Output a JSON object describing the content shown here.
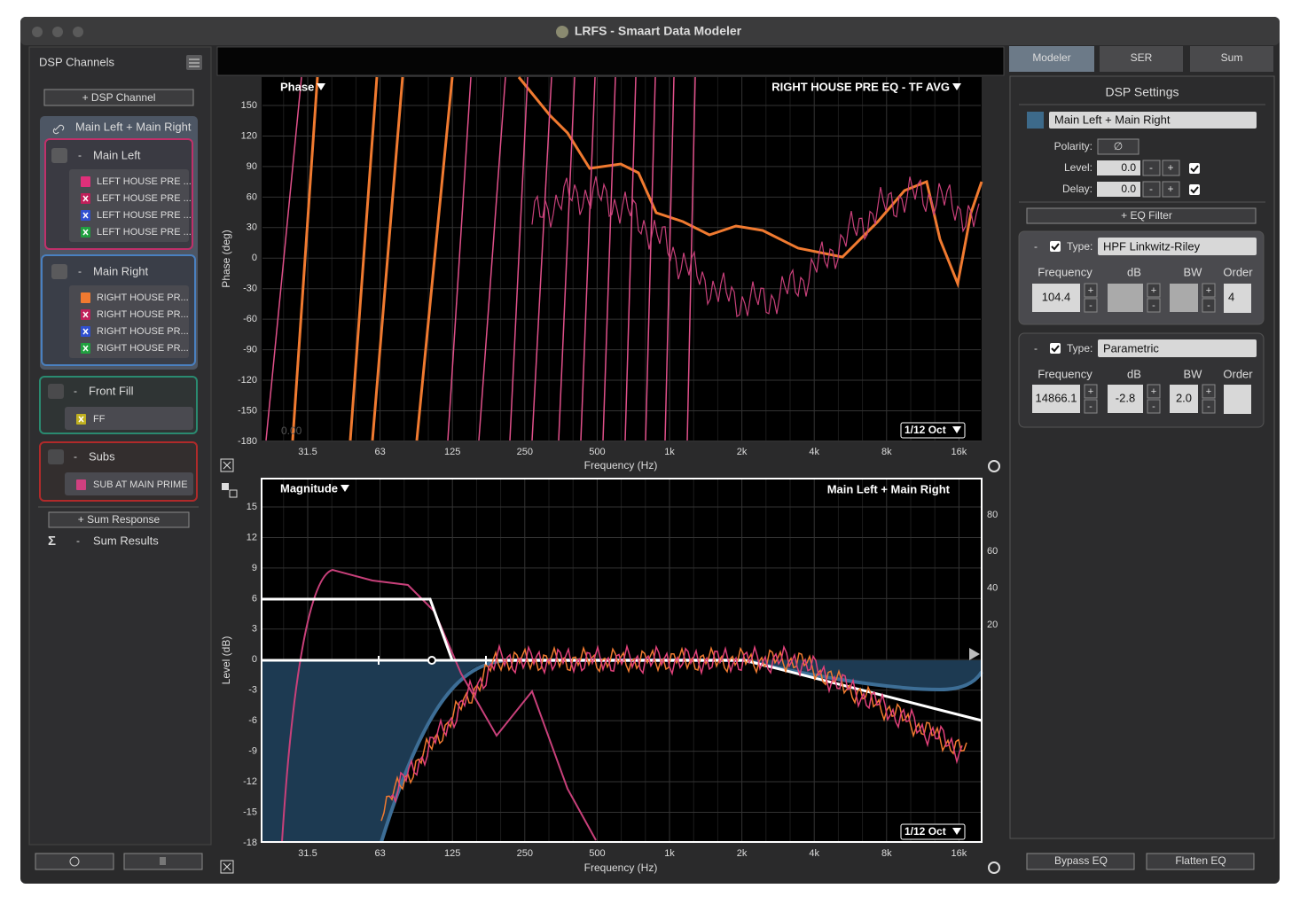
{
  "window": {
    "title": "LRFS - Smaart Data Modeler"
  },
  "sidebar": {
    "title": "DSP Channels",
    "add_channel": "+ DSP Channel",
    "group_name": "Main Left + Main Right",
    "dash": "-",
    "channels": [
      {
        "name": "Main Left",
        "sources": [
          "LEFT HOUSE PRE ...",
          "LEFT HOUSE PRE ...",
          "LEFT HOUSE PRE ...",
          "LEFT HOUSE PRE ..."
        ]
      },
      {
        "name": "Main Right",
        "sources": [
          "RIGHT HOUSE PR...",
          "RIGHT HOUSE PR...",
          "RIGHT HOUSE PR...",
          "RIGHT HOUSE PR..."
        ]
      },
      {
        "name": "Front Fill",
        "sources": [
          "FF"
        ]
      },
      {
        "name": "Subs",
        "sources": [
          "SUB AT MAIN PRIME"
        ]
      }
    ],
    "add_sum": "+ Sum Response",
    "sigma": "Σ",
    "sum_results": "Sum Results"
  },
  "phase_plot": {
    "title": "Phase",
    "trace": "RIGHT HOUSE PRE EQ - TF AVG",
    "resolution": "1/12 Oct",
    "overlay": "0.00",
    "y_label": "Phase (deg)",
    "x_label": "Frequency (Hz)",
    "yticks": [
      "150",
      "120",
      "90",
      "60",
      "30",
      "0",
      "-30",
      "-60",
      "-90",
      "-120",
      "-150",
      "-180"
    ],
    "xticks": [
      "31.5",
      "63",
      "125",
      "250",
      "500",
      "1k",
      "2k",
      "4k",
      "8k",
      "16k"
    ]
  },
  "magnitude_plot": {
    "title": "Magnitude",
    "trace": "Main Left + Main Right",
    "resolution": "1/12 Oct",
    "y_label": "Level (dB)",
    "x_label": "Frequency (Hz)",
    "yticks": [
      "15",
      "12",
      "9",
      "6",
      "3",
      "0",
      "-3",
      "-6",
      "-9",
      "-12",
      "-15",
      "-18"
    ],
    "y2ticks": [
      "80",
      "60",
      "40",
      "20"
    ],
    "xticks": [
      "31.5",
      "63",
      "125",
      "250",
      "500",
      "1k",
      "2k",
      "4k",
      "8k",
      "16k"
    ]
  },
  "tabs": [
    "Modeler",
    "SER",
    "Sum"
  ],
  "dsp": {
    "title": "DSP Settings",
    "channel": "Main Left + Main Right",
    "polarity_label": "Polarity:",
    "polarity": "∅",
    "level_label": "Level:",
    "level": "0.0",
    "delay_label": "Delay:",
    "delay": "0.0",
    "minus": "-",
    "plus": "+",
    "add_eq": "+ EQ Filter",
    "type_label": "Type:",
    "headers": [
      "Frequency",
      "dB",
      "BW",
      "Order"
    ],
    "filters": [
      {
        "type": "HPF Linkwitz-Riley",
        "frequency": "104.4",
        "order": "4"
      },
      {
        "type": "Parametric",
        "frequency": "14866.1",
        "db": "-2.8",
        "bw": "2.0"
      }
    ],
    "bypass": "Bypass EQ",
    "flatten": "Flatten EQ"
  }
}
